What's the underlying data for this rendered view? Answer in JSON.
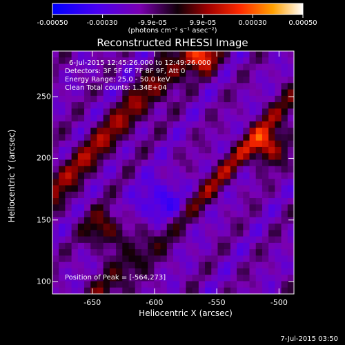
{
  "colorbar": {
    "ticks": [
      "-0.00050",
      "-0.00030",
      "-9.9e-05",
      "9.9e-05",
      "0.00030",
      "0.00050"
    ],
    "tick_values": [
      -0.0005,
      -0.0003,
      -9.9e-05,
      9.9e-05,
      0.0003,
      0.0005
    ],
    "units": "(photons cm⁻² s⁻¹ asec⁻²)",
    "colors": [
      "#0000ff",
      "#5a00e0",
      "#8a008a",
      "#000000",
      "#a00000",
      "#ff3000",
      "#ffa000",
      "#ffffff"
    ]
  },
  "plot": {
    "title": "Reconstructed RHESSI Image",
    "xlabel": "Heliocentric X (arcsec)",
    "ylabel": "Heliocentric Y (arcsec)",
    "xticks": [
      "-650",
      "-600",
      "-550",
      "-500"
    ],
    "xtick_values": [
      -650,
      -600,
      -550,
      -500
    ],
    "yticks": [
      "100",
      "150",
      "200",
      "250"
    ],
    "ytick_values": [
      100,
      150,
      200,
      250
    ],
    "xlim": [
      -682,
      -488
    ],
    "ylim": [
      90,
      287
    ],
    "annotations": {
      "time": "6-Jul-2015 12:45:26.000 to 12:49:26.000",
      "detectors": "Detectors: 3F 5F 6F 7F 8F 9F, Att 0",
      "energy": "Energy Range: 25.0 - 50.0 keV",
      "clean": "Clean     Total counts: 1.34E+04",
      "peak": "Position of Peak = [-564,273]"
    }
  },
  "footer": {
    "timestamp": "7-Jul-2015 03:50"
  }
}
